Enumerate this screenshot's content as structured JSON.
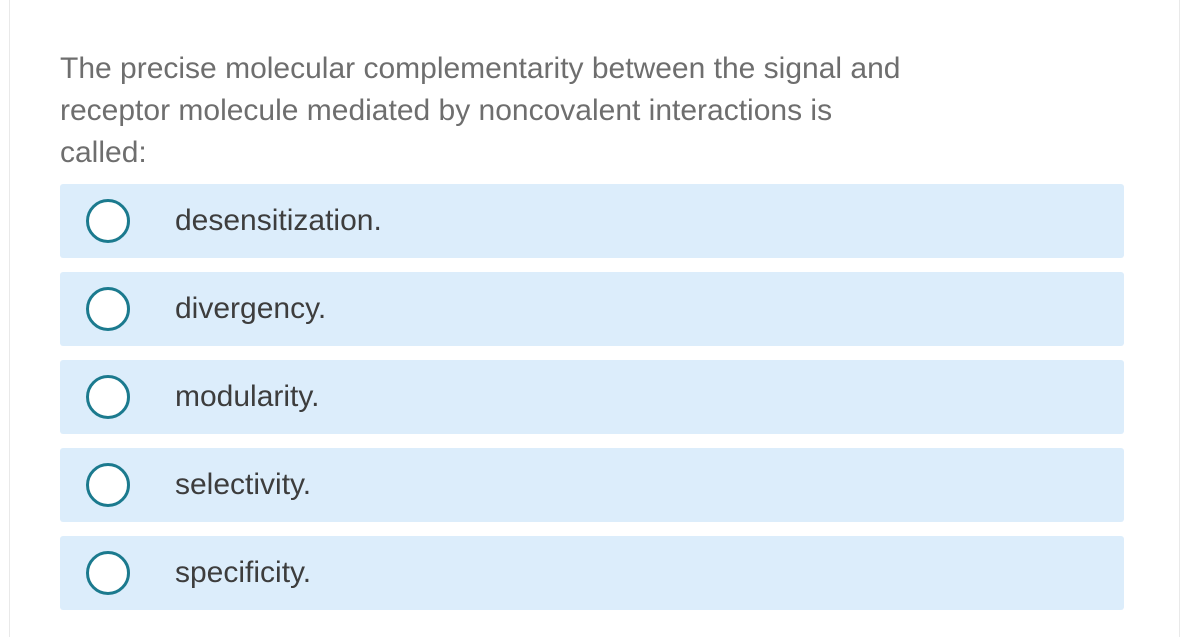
{
  "question": {
    "lines": [
      "The precise molecular complementarity between the signal and",
      "receptor molecule mediated by noncovalent interactions is",
      "called:"
    ],
    "full_text": "The precise molecular complementarity between the signal and receptor molecule mediated by noncovalent interactions is called:"
  },
  "options": [
    {
      "label": "desensitization.",
      "selected": false
    },
    {
      "label": "divergency.",
      "selected": false
    },
    {
      "label": "modularity.",
      "selected": false
    },
    {
      "label": "selectivity.",
      "selected": false
    },
    {
      "label": "specificity.",
      "selected": false
    }
  ],
  "colors": {
    "option_bg": "#dcedfb",
    "radio_border": "#1b7a8e",
    "question_text": "#6e6e6e",
    "option_text": "#3d3d3d",
    "card_border": "#e9e9e9",
    "page_bg": "#ffffff"
  }
}
